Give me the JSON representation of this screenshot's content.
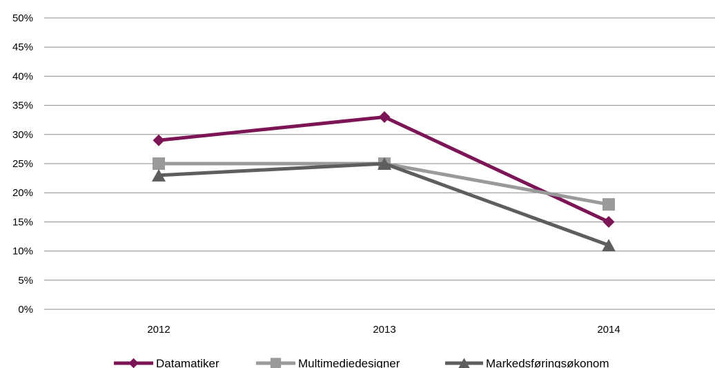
{
  "chart_data": {
    "type": "line",
    "title": "",
    "xlabel": "",
    "ylabel": "",
    "categories": [
      "2012",
      "2013",
      "2014"
    ],
    "ylim": [
      0,
      0.5
    ],
    "y_ticks": [
      "0%",
      "5%",
      "10%",
      "15%",
      "20%",
      "25%",
      "30%",
      "35%",
      "40%",
      "45%",
      "50%"
    ],
    "grid": "horizontal",
    "legend_position": "bottom",
    "series": [
      {
        "name": "Datamatiker",
        "values": [
          0.29,
          0.33,
          0.15
        ],
        "color": "#7B1555",
        "marker": "diamond"
      },
      {
        "name": "Multimediedesigner",
        "values": [
          0.25,
          0.25,
          0.18
        ],
        "color": "#9A9A9A",
        "marker": "square"
      },
      {
        "name": "Markedsføringsøkonom",
        "values": [
          0.23,
          0.25,
          0.11
        ],
        "color": "#5E5E5E",
        "marker": "triangle"
      }
    ]
  }
}
